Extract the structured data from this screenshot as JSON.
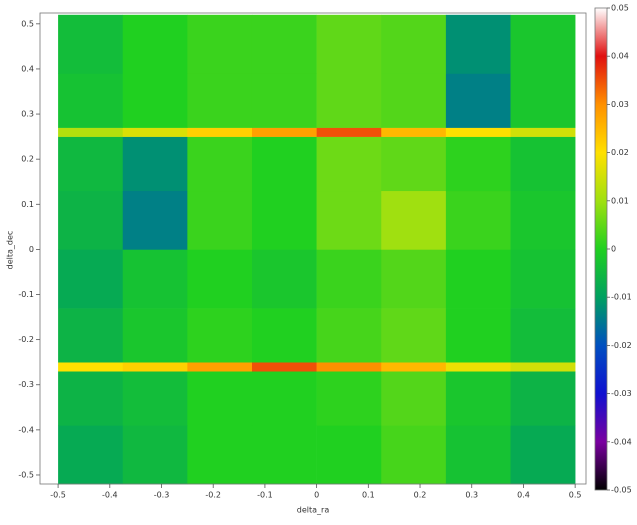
{
  "chart_data": {
    "type": "heatmap",
    "x_label": "delta_ra",
    "y_label": "delta_dec",
    "xlim": [
      -0.535,
      0.521
    ],
    "ylim": [
      -0.52,
      0.524
    ],
    "xticks": [
      -0.5,
      -0.4,
      -0.3,
      -0.2,
      -0.1,
      0,
      0.1,
      0.2,
      0.3,
      0.4,
      0.5
    ],
    "yticks": [
      -0.5,
      -0.4,
      -0.3,
      -0.2,
      -0.1,
      0,
      0.1,
      0.2,
      0.3,
      0.4,
      0.5
    ],
    "x_edges": [
      -0.5,
      -0.375,
      -0.25,
      -0.125,
      0,
      0.125,
      0.25,
      0.375,
      0.5
    ],
    "y_edges": [
      -0.52,
      -0.39,
      -0.27,
      -0.25,
      -0.13,
      0,
      0.13,
      0.25,
      0.27,
      0.39,
      0.52
    ],
    "z": [
      [
        -0.008,
        -0.005,
        0,
        0,
        0,
        0.003,
        -0.003,
        -0.008
      ],
      [
        -0.006,
        -0.004,
        0,
        0,
        0.001,
        0.004,
        -0.002,
        -0.006
      ],
      [
        0.02,
        0.022,
        0.028,
        0.035,
        0.03,
        0.025,
        0.018,
        0.015
      ],
      [
        -0.006,
        -0.002,
        0.001,
        0,
        0.003,
        0.005,
        0,
        -0.004
      ],
      [
        -0.008,
        -0.003,
        0,
        -0.002,
        0.002,
        0.004,
        0,
        -0.003
      ],
      [
        -0.006,
        -0.014,
        0.002,
        0,
        0.006,
        0.01,
        0.002,
        -0.002
      ],
      [
        -0.005,
        -0.012,
        0.002,
        0,
        0.006,
        0.005,
        0.001,
        -0.003
      ],
      [
        0.012,
        0.016,
        0.022,
        0.028,
        0.035,
        0.025,
        0.02,
        0.015
      ],
      [
        -0.003,
        0,
        0.002,
        0.002,
        0.005,
        0.004,
        -0.014,
        -0.002
      ],
      [
        -0.004,
        0,
        0.002,
        0.002,
        0.005,
        0.004,
        -0.012,
        -0.002
      ]
    ],
    "zlim": [
      -0.05,
      0.05
    ],
    "zticks": [
      -0.05,
      -0.04,
      -0.03,
      -0.02,
      -0.01,
      0,
      0.01,
      0.02,
      0.03,
      0.04,
      0.05
    ],
    "colorscale": [
      [
        -0.05,
        "#000000"
      ],
      [
        -0.04,
        "#7a00a0"
      ],
      [
        -0.03,
        "#1010d0"
      ],
      [
        -0.02,
        "#0050c0"
      ],
      [
        -0.01,
        "#00a060"
      ],
      [
        0,
        "#20d020"
      ],
      [
        0.01,
        "#a0e010"
      ],
      [
        0.02,
        "#ffe000"
      ],
      [
        0.03,
        "#ff9000"
      ],
      [
        0.04,
        "#e01010"
      ],
      [
        0.05,
        "#ffffff"
      ]
    ]
  }
}
